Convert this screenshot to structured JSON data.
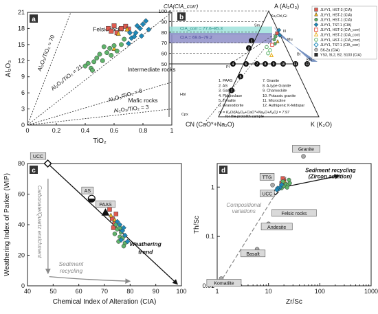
{
  "chart_data": [
    {
      "panel": "a",
      "type": "scatter",
      "xlabel": "TiO₂",
      "ylabel": "Al₂O₃",
      "xlim": [
        0,
        1
      ],
      "ylim": [
        0,
        21
      ],
      "xticks": [
        "0",
        "0.2",
        "0.4",
        "0.6",
        "0.8",
        "1"
      ],
      "yticks": [
        "0",
        "3",
        "6",
        "9",
        "12",
        "15",
        "18",
        "21"
      ],
      "ratio_lines": [
        {
          "label": "Al₂O₃/TiO₂ = 70",
          "ratio": 70
        },
        {
          "label": "Al₂O₃/TiO₂ = 21",
          "ratio": 21
        },
        {
          "label": "Al₂O₃/TiO₂ = 8",
          "ratio": 8
        },
        {
          "label": "Al₂O₃/TiO₂ = 3",
          "ratio": 3
        }
      ],
      "field_labels": [
        "Felsic rocks",
        "Intermediate rocks",
        "Mafic rocks"
      ],
      "series": [
        {
          "name": "HST-3",
          "marker": "square",
          "color": "#e05a4f",
          "points": [
            [
              0.56,
              18.0
            ],
            [
              0.6,
              18.5
            ],
            [
              0.65,
              18.0
            ],
            [
              0.68,
              18.4
            ],
            [
              0.62,
              17.2
            ],
            [
              0.7,
              17.9
            ],
            [
              0.58,
              17.5
            ]
          ]
        },
        {
          "name": "HST-2",
          "marker": "triangle",
          "color": "#e8b020",
          "points": [
            [
              0.63,
              17.0
            ],
            [
              0.69,
              17.8
            ],
            [
              0.6,
              14.2
            ]
          ]
        },
        {
          "name": "HST-1",
          "marker": "circle",
          "color": "#5fb36b",
          "points": [
            [
              0.4,
              11.0
            ],
            [
              0.42,
              11.5
            ],
            [
              0.44,
              10.6
            ],
            [
              0.46,
              11.8
            ],
            [
              0.48,
              12.5
            ],
            [
              0.5,
              13.2
            ],
            [
              0.52,
              12.0
            ],
            [
              0.55,
              13.5
            ],
            [
              0.57,
              14.3
            ],
            [
              0.6,
              14.8
            ],
            [
              0.62,
              13.8
            ],
            [
              0.65,
              15.0
            ],
            [
              0.45,
              10.2
            ],
            [
              0.53,
              14.6
            ],
            [
              0.58,
              13.0
            ],
            [
              0.67,
              16.0
            ]
          ]
        },
        {
          "name": "TST-1",
          "marker": "diamond",
          "color": "#1e88b8",
          "points": [
            [
              0.7,
              15.2
            ],
            [
              0.72,
              16.2
            ],
            [
              0.75,
              17.2
            ],
            [
              0.78,
              18.0
            ],
            [
              0.8,
              18.8
            ],
            [
              0.82,
              19.4
            ],
            [
              0.76,
              18.5
            ],
            [
              0.74,
              16.5
            ],
            [
              0.84,
              17.8
            ],
            [
              0.71,
              17.2
            ],
            [
              0.79,
              16.6
            ]
          ]
        }
      ]
    },
    {
      "panel": "b",
      "type": "ternary",
      "apex_top": "A (Al₂O₃)",
      "apex_left": "CN (CaO*+Na₂O)",
      "apex_right": "K (K₂O)",
      "axis_title": "CIA(CIA_corr)",
      "ticks": [
        "100",
        "90",
        "80",
        "70",
        "60",
        "50"
      ],
      "cia_band_1": "CIA_corr = 77.6–85.3",
      "cia_band_2": "CIA = 69.6–79.2",
      "mineral_labels": [
        "Ka,Chl,Gi",
        "Sm",
        "Ill",
        "Mu",
        "Bt",
        "Kfs",
        "Pl",
        "Hbl",
        "Cpx"
      ],
      "reference_list": [
        "1. PAAS",
        "2. AS",
        "3. Gabbro",
        "4. Plagioclase",
        "5. Tonalite",
        "6. Granodiorite",
        "7. Granite",
        "8. A-type Granite",
        "9. Charnockite",
        "10. Potassic granite",
        "11. Microcline",
        "12. Authigenic K-feldspar"
      ],
      "formula": "m = K₂O/(Al₂O₃+CaO*+Na₂O+K₂O) = 7.97",
      "formula_note": "for the protolith sample",
      "legend": [
        {
          "label": "JLYY1, HST-3 (CIA)",
          "marker": "square",
          "color": "#e05a4f",
          "fill": true
        },
        {
          "label": "JLYY1, HST-2 (CIA)",
          "marker": "triangle",
          "color": "#e8b020",
          "fill": true
        },
        {
          "label": "JLYY1, HST-1 (CIA)",
          "marker": "circle",
          "color": "#5fb36b",
          "fill": true
        },
        {
          "label": "JLYY1, TST-1 (CIA)",
          "marker": "diamond",
          "color": "#1e88b8",
          "fill": true
        },
        {
          "label": "JLYY1, HST-3 (CIA_corr)",
          "marker": "square",
          "color": "#e05a4f",
          "fill": false
        },
        {
          "label": "JLYY1, HST-2 (CIA_corr)",
          "marker": "triangle",
          "color": "#e8b020",
          "fill": false
        },
        {
          "label": "JLYY1, HST-1 (CIA_corr)",
          "marker": "circle",
          "color": "#5fb36b",
          "fill": false
        },
        {
          "label": "JLYY1, TST-1 (CIA_corr)",
          "marker": "diamond",
          "color": "#1e88b8",
          "fill": false
        },
        {
          "label": "SK-2a (CIA)",
          "marker": "circle",
          "color": "#bbbbbb",
          "fill": true
        },
        {
          "label": "YS3, SL2, B2, S103 (CIA)",
          "marker": "square",
          "color": "#2d2d2d",
          "fill": true
        }
      ]
    },
    {
      "panel": "c",
      "type": "scatter",
      "xlabel": "Chemical Index of Alteration (CIA)",
      "ylabel": "Weathering Index of Parker (WIP)",
      "xlim": [
        40,
        100
      ],
      "ylim": [
        0,
        80
      ],
      "xticks": [
        "40",
        "50",
        "60",
        "70",
        "80",
        "90",
        "100"
      ],
      "yticks": [
        "0",
        "20",
        "40",
        "60",
        "80"
      ],
      "labels": [
        "UCC",
        "AS",
        "PAAS"
      ],
      "trend_label": "Weathering trend",
      "annotations": [
        "Carbonate/Quartz enrichment",
        "Sediment recycling"
      ],
      "series": [
        {
          "name": "HST-3",
          "marker": "square",
          "color": "#e05a4f",
          "points": [
            [
              72,
              50
            ],
            [
              73,
              44
            ],
            [
              74,
              41
            ],
            [
              74.5,
              47
            ],
            [
              73.5,
              38
            ]
          ]
        },
        {
          "name": "HST-2",
          "marker": "triangle",
          "color": "#e8b020",
          "points": [
            [
              72.5,
              46
            ],
            [
              74,
              43
            ]
          ]
        },
        {
          "name": "HST-1",
          "marker": "circle",
          "color": "#5fb36b",
          "points": [
            [
              74,
              34
            ],
            [
              75,
              37
            ],
            [
              76,
              32
            ],
            [
              75.5,
              29
            ],
            [
              77,
              31
            ],
            [
              76.5,
              35
            ],
            [
              78,
              28
            ],
            [
              74.5,
              40
            ],
            [
              77.5,
              26
            ],
            [
              76,
              38
            ]
          ]
        },
        {
          "name": "TST-1",
          "marker": "diamond",
          "color": "#1e88b8",
          "points": [
            [
              75,
              42
            ],
            [
              76,
              40
            ],
            [
              77,
              36
            ],
            [
              78,
              33
            ],
            [
              76.5,
              30
            ],
            [
              79,
              29
            ],
            [
              77.5,
              38
            ]
          ]
        }
      ],
      "reference_points": [
        {
          "name": "UCC",
          "x": 47.9,
          "y": 80
        },
        {
          "name": "AS",
          "x": 65,
          "y": 57
        },
        {
          "name": "PAAS",
          "x": 70.4,
          "y": 48
        }
      ]
    },
    {
      "panel": "d",
      "type": "scatter",
      "scale": "log-log",
      "xlabel": "Zr/Sc",
      "ylabel": "Th/Sc",
      "xlim": [
        1,
        1000
      ],
      "ylim": [
        0.01,
        3
      ],
      "xticks": [
        "1",
        "10",
        "100",
        "1000"
      ],
      "yticks": [
        "0.01",
        "0.1",
        "1"
      ],
      "labels": [
        "Granite",
        "TTG",
        "UCC",
        "Felsic rocks",
        "Andesite",
        "Basalt",
        "Komatiite"
      ],
      "annotations": [
        "Sediment recycling (Zircon addition)",
        "Compositional variations"
      ],
      "reference_points": [
        {
          "name": "Granite",
          "x": 48,
          "y": 4.2
        },
        {
          "name": "TTG",
          "x": 12,
          "y": 1.1
        },
        {
          "name": "UCC",
          "x": 13.7,
          "y": 0.79
        },
        {
          "name": "Felsic rocks",
          "x": 16,
          "y": 0.32
        },
        {
          "name": "Andesite",
          "x": 10,
          "y": 0.18
        },
        {
          "name": "Basalt",
          "x": 6,
          "y": 0.055
        },
        {
          "name": "Komatiite",
          "x": 1.2,
          "y": 0.014
        }
      ],
      "series": [
        {
          "name": "HST-3",
          "marker": "square",
          "color": "#e05a4f",
          "points": [
            [
              18,
              1.2
            ],
            [
              20,
              1.35
            ],
            [
              22,
              1.05
            ],
            [
              19,
              1.5
            ]
          ]
        },
        {
          "name": "HST-2",
          "marker": "triangle",
          "color": "#e8b020",
          "points": [
            [
              17,
              1.0
            ],
            [
              21,
              1.25
            ]
          ]
        },
        {
          "name": "HST-1",
          "marker": "circle",
          "color": "#5fb36b",
          "points": [
            [
              18,
              0.95
            ],
            [
              20,
              1.05
            ],
            [
              22,
              1.15
            ],
            [
              24,
              1.1
            ],
            [
              26,
              1.2
            ],
            [
              19,
              1.3
            ],
            [
              23,
              0.98
            ],
            [
              25,
              1.4
            ]
          ]
        },
        {
          "name": "TST-1",
          "marker": "diamond",
          "color": "#1e88b8",
          "points": [
            [
              16,
              0.92
            ],
            [
              17,
              1.0
            ],
            [
              15,
              0.95
            ],
            [
              18,
              1.12
            ],
            [
              14.5,
              0.88
            ]
          ]
        }
      ]
    }
  ]
}
